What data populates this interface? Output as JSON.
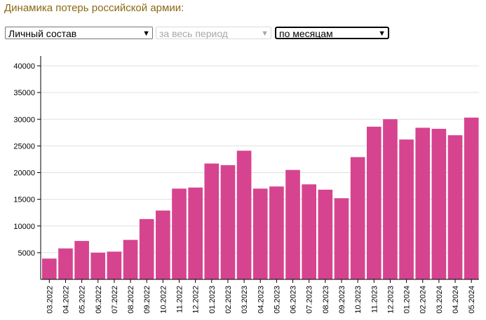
{
  "page": {
    "title": "Динамика потерь российской армии:"
  },
  "controls": {
    "category_select": {
      "value": "Личный состав"
    },
    "period_select": {
      "value": "за весь период"
    },
    "granularity_select": {
      "value": "по месяцам"
    }
  },
  "colors": {
    "bar": "#d6448f",
    "grid": "#e0e0e0",
    "axis": "#000000"
  },
  "chart_data": {
    "type": "bar",
    "categories": [
      "03.2022",
      "04.2022",
      "05.2022",
      "06.2022",
      "07.2022",
      "08.2022",
      "09.2022",
      "10.2022",
      "11.2022",
      "12.2022",
      "01.2023",
      "02.2023",
      "03.2023",
      "04.2023",
      "05.2023",
      "06.2023",
      "07.2023",
      "08.2023",
      "09.2023",
      "10.2023",
      "11.2023",
      "12.2023",
      "01.2024",
      "02.2024",
      "03.2024",
      "04.2024",
      "05.2024"
    ],
    "values": [
      3900,
      5800,
      7200,
      5000,
      5200,
      7400,
      11300,
      12900,
      17000,
      17200,
      21700,
      21400,
      24100,
      17000,
      17400,
      20500,
      17800,
      16800,
      15200,
      22900,
      28600,
      30000,
      26200,
      28400,
      28200,
      27000,
      30300
    ],
    "yticks": [
      5000,
      10000,
      15000,
      20000,
      25000,
      30000,
      35000,
      40000
    ],
    "ylim": [
      0,
      40000
    ],
    "grid": true
  }
}
